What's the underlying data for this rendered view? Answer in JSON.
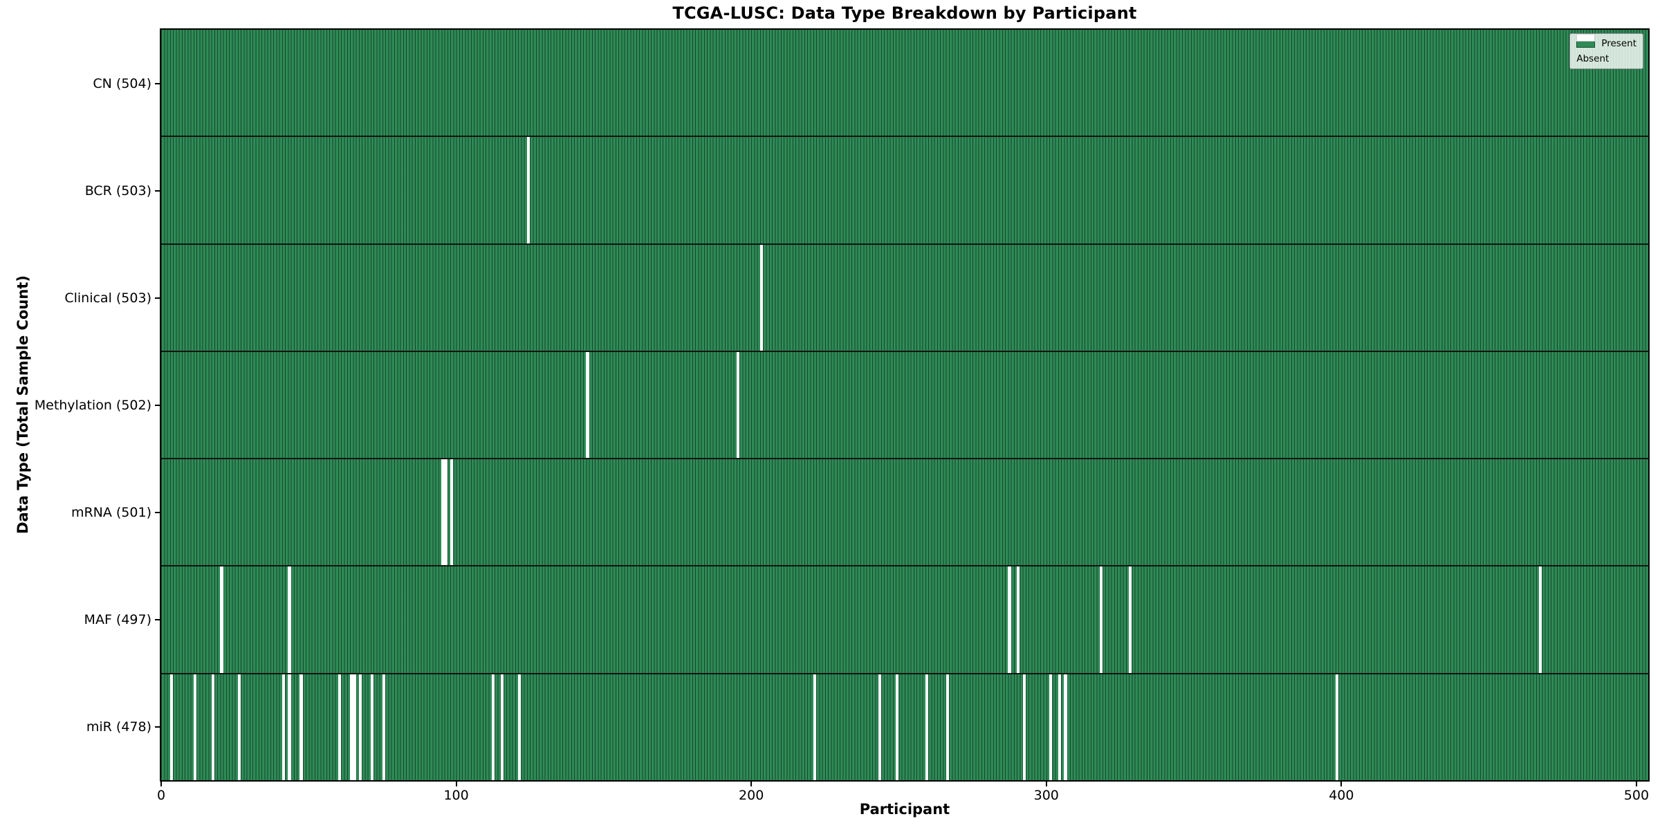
{
  "chart_data": {
    "type": "heatmap",
    "title": "TCGA-LUSC: Data Type Breakdown by Participant",
    "xlabel": "Participant",
    "ylabel": "Data Type (Total Sample Count)",
    "n_participants": 504,
    "xlim": [
      0,
      504
    ],
    "x_ticks": [
      0,
      100,
      200,
      300,
      400,
      500
    ],
    "grid": false,
    "legend_position": "upper right",
    "colors": {
      "present": "#2e8b57",
      "absent": "#ffffff",
      "bar_edge": "rgba(0,0,0,0.5)",
      "row_divider": "#101510",
      "spine": "#000000"
    },
    "legend": [
      {
        "label": "Present",
        "color": "#2e8b57"
      },
      {
        "label": "Absent",
        "color": "#ffffff"
      }
    ],
    "rows": [
      {
        "label": "CN (504)",
        "data_type": "CN",
        "total": 504,
        "absent_participants": []
      },
      {
        "label": "BCR (503)",
        "data_type": "BCR",
        "total": 503,
        "absent_participants": [
          124
        ]
      },
      {
        "label": "Clinical (503)",
        "data_type": "Clinical",
        "total": 503,
        "absent_participants": [
          203
        ]
      },
      {
        "label": "Methylation (502)",
        "data_type": "Methylation",
        "total": 502,
        "absent_participants": [
          144,
          195
        ]
      },
      {
        "label": "mRNA (501)",
        "data_type": "mRNA",
        "total": 501,
        "absent_participants": [
          95,
          96,
          98
        ]
      },
      {
        "label": "MAF (497)",
        "data_type": "MAF",
        "total": 497,
        "absent_participants": [
          20,
          43,
          287,
          290,
          318,
          328,
          467
        ]
      },
      {
        "label": "miR (478)",
        "data_type": "miR",
        "total": 478,
        "absent_participants": [
          3,
          11,
          17,
          26,
          41,
          43,
          47,
          60,
          64,
          65,
          67,
          71,
          75,
          112,
          115,
          121,
          221,
          243,
          249,
          259,
          266,
          292,
          301,
          304,
          306,
          398
        ]
      }
    ]
  }
}
